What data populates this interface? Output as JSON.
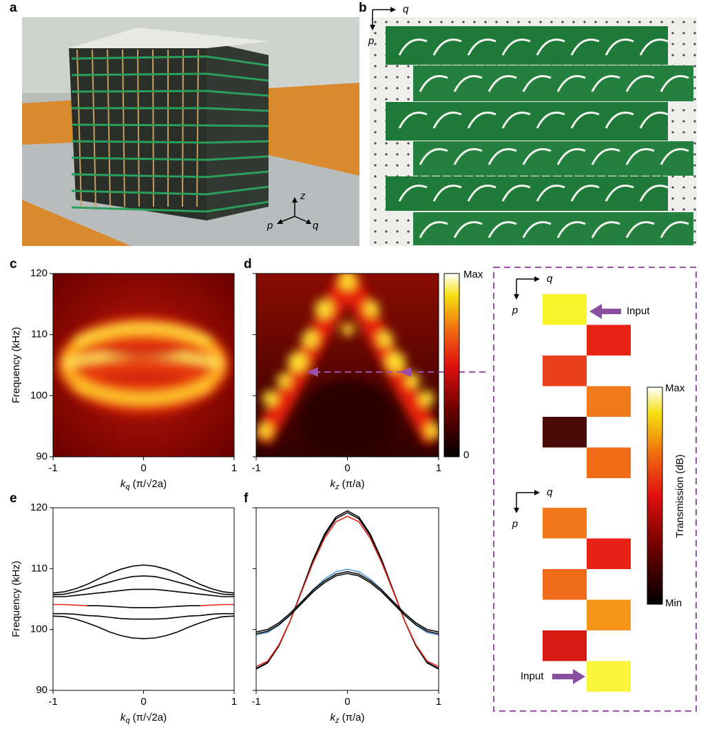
{
  "panel_labels": [
    "a",
    "b",
    "c",
    "d",
    "e",
    "f"
  ],
  "photos": [
    {
      "axes": [
        "z",
        "p",
        "q"
      ]
    },
    {
      "axes": [
        "q",
        "p"
      ]
    }
  ],
  "chart_data": [
    {
      "type": "heatmap",
      "ylabel": "Frequency (kHz)",
      "xlabel": [
        "k",
        "q",
        " (π/√2a)"
      ],
      "xlim": [
        -1,
        1
      ],
      "ylim": [
        90,
        120
      ],
      "xticks": [
        -1,
        0,
        1
      ],
      "yticks": [
        90,
        100,
        110,
        120
      ]
    },
    {
      "type": "heatmap",
      "xlabel": [
        "k",
        "z",
        " (π/a)"
      ],
      "xlim": [
        -1,
        1
      ],
      "ylim": [
        90,
        120
      ],
      "xticks": [
        -1,
        0,
        1
      ],
      "yticks": [
        90,
        100,
        110,
        120
      ],
      "colorbar": [
        "Max",
        "0"
      ]
    },
    {
      "type": "line",
      "ylabel": "Frequency (kHz)",
      "xlabel": [
        "k",
        "q",
        " (π/√2a)"
      ],
      "xlim": [
        -1,
        1
      ],
      "ylim": [
        90,
        120
      ],
      "xticks": [
        -1,
        0,
        1
      ],
      "yticks": [
        90,
        100,
        110,
        120
      ],
      "x": [
        -1,
        -0.875,
        -0.75,
        -0.625,
        -0.5,
        -0.375,
        -0.25,
        -0.125,
        0,
        0.125,
        0.25,
        0.375,
        0.5,
        0.625,
        0.75,
        0.875,
        1
      ],
      "series": [
        {
          "color": "#000000",
          "values": [
            106.0,
            106.2,
            106.7,
            107.4,
            108.3,
            109.2,
            109.9,
            110.4,
            110.6,
            110.4,
            109.9,
            109.2,
            108.3,
            107.4,
            106.7,
            106.2,
            106.0
          ]
        },
        {
          "color": "#000000",
          "values": [
            105.7,
            105.8,
            106.2,
            106.7,
            107.3,
            107.8,
            108.3,
            108.7,
            108.8,
            108.7,
            108.3,
            107.8,
            107.3,
            106.7,
            106.2,
            105.8,
            105.7
          ]
        },
        {
          "color": "#000000",
          "values": [
            105.4,
            105.4,
            105.6,
            105.8,
            106.0,
            106.2,
            106.4,
            106.6,
            106.6,
            106.6,
            106.4,
            106.2,
            106.0,
            105.8,
            105.6,
            105.4,
            105.4
          ]
        },
        {
          "color": "#000000",
          "values": [
            null,
            null,
            null,
            103.9,
            103.9,
            103.8,
            103.7,
            103.6,
            103.6,
            103.6,
            103.7,
            103.8,
            103.9,
            103.9,
            null,
            null,
            null
          ]
        },
        {
          "color": "#e8251c",
          "values": [
            104.1,
            104.1,
            104.0,
            103.9,
            null,
            null,
            null,
            null,
            null,
            null,
            null,
            null,
            null,
            103.9,
            104.0,
            104.1,
            104.1
          ]
        },
        {
          "color": "#000000",
          "values": [
            102.6,
            102.6,
            102.5,
            102.3,
            102.2,
            102.0,
            101.8,
            101.7,
            101.7,
            101.7,
            101.8,
            102.0,
            102.2,
            102.3,
            102.5,
            102.6,
            102.6
          ]
        },
        {
          "color": "#000000",
          "values": [
            102.2,
            102.1,
            101.7,
            101.1,
            100.4,
            99.6,
            99.0,
            98.6,
            98.5,
            98.6,
            99.0,
            99.6,
            100.4,
            101.1,
            101.7,
            102.1,
            102.2
          ]
        }
      ]
    },
    {
      "type": "line",
      "xlabel": [
        "k",
        "z",
        " (π/a)"
      ],
      "xlim": [
        -1,
        1
      ],
      "ylim": [
        90,
        120
      ],
      "xticks": [
        -1,
        0,
        1
      ],
      "yticks": [
        90,
        100,
        110,
        120
      ],
      "x": [
        -1,
        -0.875,
        -0.75,
        -0.625,
        -0.5,
        -0.375,
        -0.25,
        -0.125,
        0,
        0.125,
        0.25,
        0.375,
        0.5,
        0.625,
        0.75,
        0.875,
        1
      ],
      "series": [
        {
          "color": "#000000",
          "values": [
            93.5,
            94.5,
            97.3,
            101.5,
            106.5,
            111.5,
            115.7,
            118.5,
            119.5,
            118.5,
            115.7,
            111.5,
            106.5,
            101.5,
            97.3,
            94.5,
            93.5
          ]
        },
        {
          "color": "#000000",
          "values": [
            93.6,
            94.6,
            97.4,
            101.5,
            106.4,
            111.3,
            115.4,
            118.2,
            119.2,
            118.2,
            115.4,
            111.3,
            106.4,
            101.5,
            97.4,
            94.6,
            93.6
          ]
        },
        {
          "color": "#e8251c",
          "values": [
            93.9,
            94.8,
            97.5,
            101.5,
            106.3,
            111.0,
            115.0,
            117.7,
            118.6,
            117.7,
            115.0,
            111.0,
            106.3,
            101.5,
            97.5,
            94.8,
            93.9
          ]
        },
        {
          "color": "#5b9bd5",
          "values": [
            99.1,
            99.5,
            100.7,
            102.4,
            104.5,
            106.6,
            108.3,
            109.5,
            109.9,
            109.5,
            108.3,
            106.6,
            104.5,
            102.4,
            100.7,
            99.5,
            99.1
          ]
        },
        {
          "color": "#000000",
          "values": [
            99.6,
            100.0,
            101.1,
            102.7,
            104.6,
            106.5,
            108.0,
            109.1,
            109.5,
            109.1,
            108.0,
            106.5,
            104.6,
            102.7,
            101.1,
            100.0,
            99.6
          ]
        },
        {
          "color": "#000000",
          "values": [
            99.3,
            99.7,
            100.8,
            102.4,
            104.3,
            106.2,
            107.7,
            108.8,
            109.2,
            108.8,
            107.7,
            106.2,
            104.3,
            102.4,
            100.8,
            99.7,
            99.3
          ]
        }
      ]
    }
  ],
  "transmission": {
    "top": {
      "axes": [
        "q",
        "p"
      ],
      "input": "Input",
      "cells": [
        "#f9f42a",
        "#e82514",
        "#e8401a",
        "#f07a1a",
        "#4a0a06",
        "#f06c18"
      ]
    },
    "bottom": {
      "axes": [
        "q",
        "p"
      ],
      "input": "Input",
      "cells": [
        "#f2761a",
        "#e82116",
        "#ef6d1a",
        "#f5961a",
        "#d51b14",
        "#f8f53a"
      ]
    },
    "colorbar": {
      "max": "Max",
      "min": "Min",
      "label": "Transmission (dB)"
    }
  }
}
